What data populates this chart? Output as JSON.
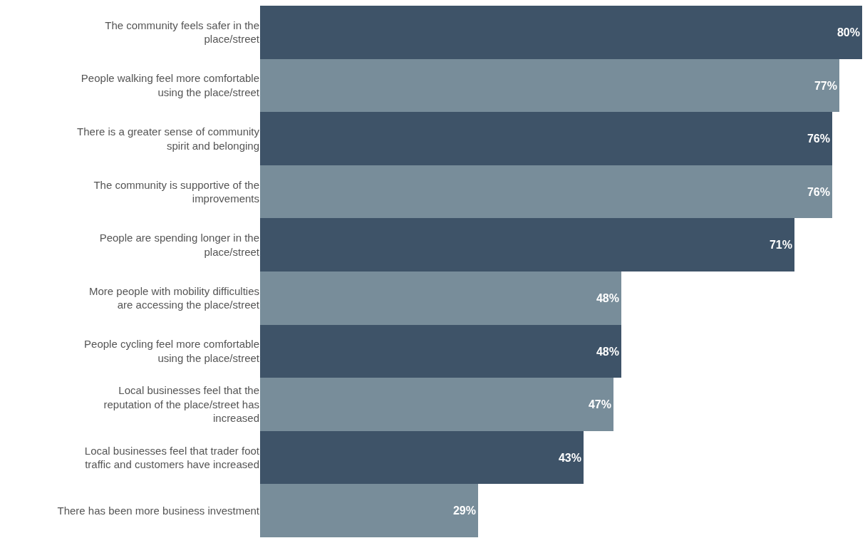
{
  "chart_data": {
    "type": "bar",
    "orientation": "horizontal",
    "categories": [
      "The community feels safer in the place/street",
      "People walking feel more comfortable using the place/street",
      "There is a greater sense of community spirit and belonging",
      "The community is supportive of the improvements",
      "People are spending longer in the place/street",
      "More people with mobility difficulties are accessing the place/street",
      "People cycling feel more comfortable using the place/street",
      "Local businesses feel that the reputation of the place/street has increased",
      "Local businesses feel that trader foot traffic and customers have increased",
      "There has been more business investment"
    ],
    "values": [
      80,
      77,
      76,
      76,
      71,
      48,
      48,
      47,
      43,
      29
    ],
    "value_labels": [
      "80%",
      "77%",
      "76%",
      "76%",
      "71%",
      "48%",
      "48%",
      "47%",
      "43%",
      "29%"
    ],
    "colors": [
      "#3e5368",
      "#788d9a",
      "#3e5368",
      "#788d9a",
      "#3e5368",
      "#788d9a",
      "#3e5368",
      "#788d9a",
      "#3e5368",
      "#788d9a"
    ],
    "tick_labels": "y",
    "legend": false
  }
}
